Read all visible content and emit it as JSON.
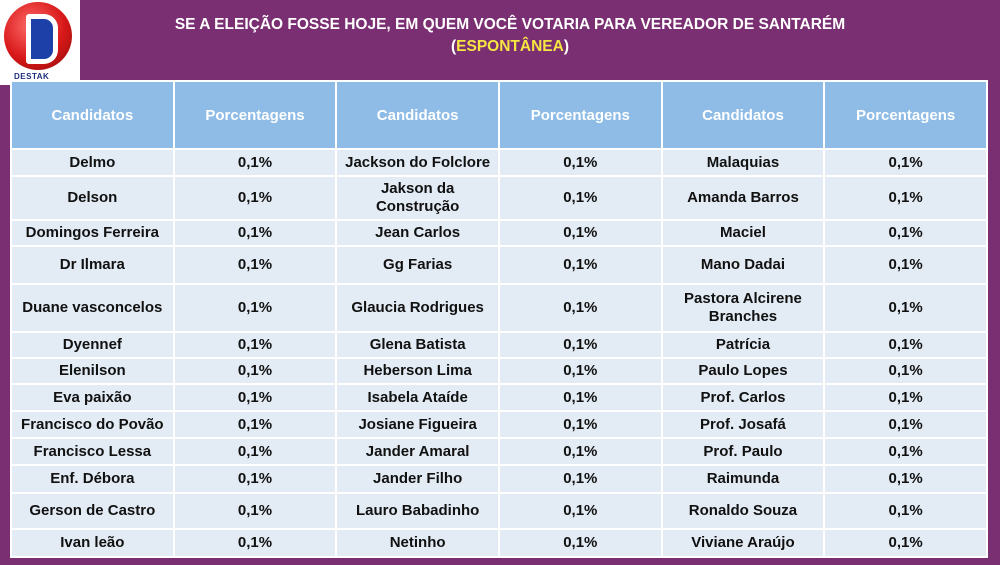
{
  "logo": {
    "text": "DESTAK"
  },
  "title": {
    "line1": "SE A ELEIÇÃO FOSSE HOJE, EM QUEM VOCÊ VOTARIA PARA VEREADOR DE SANTARÉM",
    "open_paren": "(",
    "highlight": "ESPONTÂNEA",
    "close_paren": ")"
  },
  "colors": {
    "background": "#7a2f72",
    "header": "#8ebce6",
    "cell": "#e3ecf5",
    "highlight": "#f5e642"
  },
  "table": {
    "headers": [
      "Candidatos",
      "Porcentagens",
      "Candidatos",
      "Porcentagens",
      "Candidatos",
      "Porcentagens"
    ],
    "rows": [
      [
        "Delmo",
        "0,1%",
        "Jackson do Folclore",
        "0,1%",
        "Malaquias",
        "0,1%"
      ],
      [
        "Delson",
        "0,1%",
        "Jakson da Construção",
        "0,1%",
        "Amanda Barros",
        "0,1%"
      ],
      [
        "Domingos Ferreira",
        "0,1%",
        "Jean Carlos",
        "0,1%",
        "Maciel",
        "0,1%"
      ],
      [
        "Dr Ilmara",
        "0,1%",
        "Gg Farias",
        "0,1%",
        "Mano Dadai",
        "0,1%"
      ],
      [
        "Duane vasconcelos",
        "0,1%",
        "Glaucia Rodrigues",
        "0,1%",
        "Pastora Alcirene Branches",
        "0,1%"
      ],
      [
        "Dyennef",
        "0,1%",
        "Glena Batista",
        "0,1%",
        "Patrícia",
        "0,1%"
      ],
      [
        "Elenilson",
        "0,1%",
        "Heberson Lima",
        "0,1%",
        "Paulo Lopes",
        "0,1%"
      ],
      [
        "Eva paixão",
        "0,1%",
        "Isabela Ataíde",
        "0,1%",
        "Prof. Carlos",
        "0,1%"
      ],
      [
        "Francisco do Povão",
        "0,1%",
        "Josiane Figueira",
        "0,1%",
        "Prof. Josafá",
        "0,1%"
      ],
      [
        "Francisco Lessa",
        "0,1%",
        "Jander Amaral",
        "0,1%",
        "Prof. Paulo",
        "0,1%"
      ],
      [
        "Enf. Débora",
        "0,1%",
        "Jander Filho",
        "0,1%",
        "Raimunda",
        "0,1%"
      ],
      [
        "Gerson de Castro",
        "0,1%",
        "Lauro  Babadinho",
        "0,1%",
        "Ronaldo Souza",
        "0,1%"
      ],
      [
        "Ivan leão",
        "0,1%",
        "Netinho",
        "0,1%",
        "Viviane Araújo",
        "0,1%"
      ]
    ]
  }
}
